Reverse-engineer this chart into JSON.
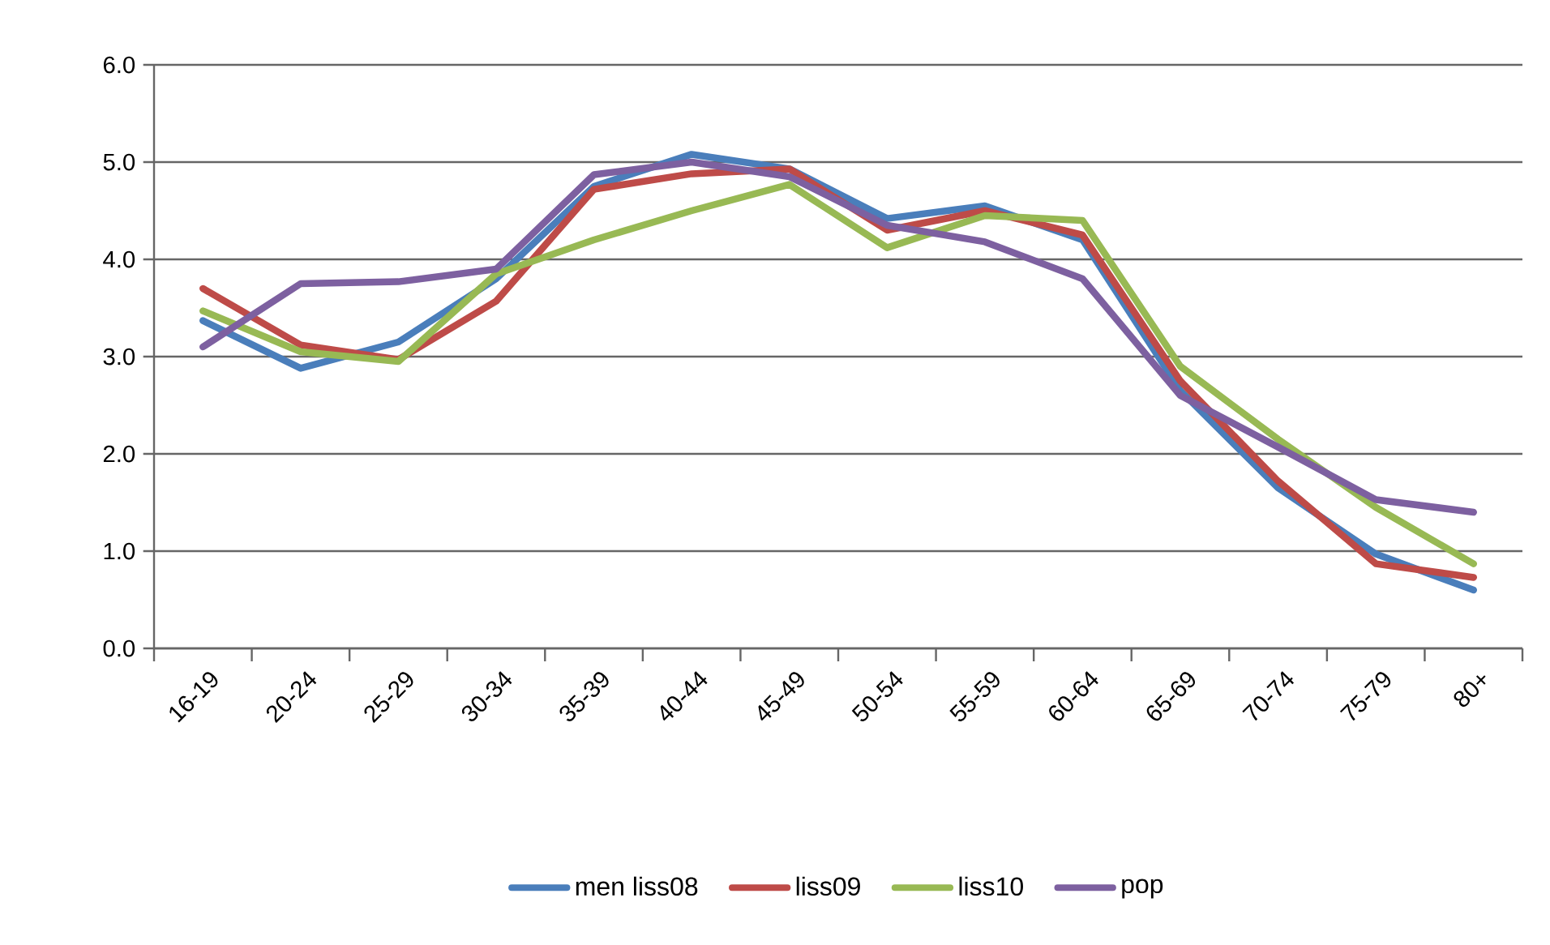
{
  "chart_data": {
    "type": "line",
    "categories": [
      "16-19",
      "20-24",
      "25-29",
      "30-34",
      "35-39",
      "40-44",
      "45-49",
      "50-54",
      "55-59",
      "60-64",
      "65-69",
      "70-74",
      "75-79",
      "80+"
    ],
    "series": [
      {
        "name": "men liss08",
        "color": "#4a7ebb",
        "values": [
          3.37,
          2.88,
          3.15,
          3.8,
          4.75,
          5.08,
          4.93,
          4.42,
          4.55,
          4.2,
          2.65,
          1.65,
          0.97,
          0.6
        ]
      },
      {
        "name": "liss09",
        "color": "#be4b48",
        "values": [
          3.7,
          3.12,
          2.97,
          3.57,
          4.72,
          4.88,
          4.93,
          4.3,
          4.5,
          4.25,
          2.75,
          1.72,
          0.87,
          0.73
        ]
      },
      {
        "name": "liss10",
        "color": "#98b954",
        "values": [
          3.47,
          3.05,
          2.95,
          3.85,
          4.2,
          4.5,
          4.77,
          4.12,
          4.45,
          4.4,
          2.9,
          2.15,
          1.45,
          0.87
        ]
      },
      {
        "name": "pop",
        "color": "#7d60a0",
        "values": [
          3.1,
          3.75,
          3.77,
          3.9,
          4.87,
          5.0,
          4.85,
          4.35,
          4.18,
          3.8,
          2.6,
          2.07,
          1.53,
          1.4
        ]
      }
    ],
    "ylim": [
      0,
      6
    ],
    "yticks": [
      {
        "value": 0,
        "label": "0.0"
      },
      {
        "value": 1,
        "label": "1.0"
      },
      {
        "value": 2,
        "label": "2.0"
      },
      {
        "value": 3,
        "label": "3.0"
      },
      {
        "value": 4,
        "label": "4.0"
      },
      {
        "value": 5,
        "label": "5.0"
      },
      {
        "value": 6,
        "label": "6.0"
      }
    ],
    "grid": "y",
    "legend": "bottom",
    "marker": "none",
    "line_style": "solid"
  }
}
